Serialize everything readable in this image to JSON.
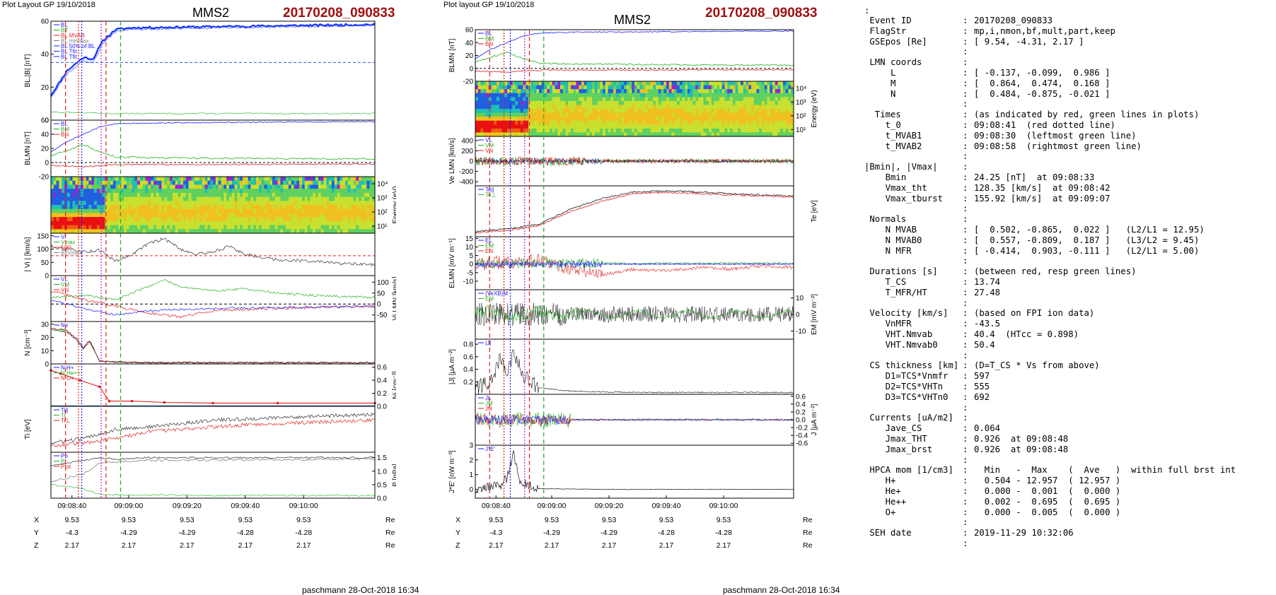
{
  "plot1": {
    "header": "Plot Layout GP 19/10/2018",
    "sc": "MMS2",
    "event": "20170208_090833",
    "footer": "paschmann 28-Oct-2018 16:34",
    "x_ticks": [
      "09:08:40",
      "09:09:00",
      "09:09:20",
      "09:09:40",
      "09:10:00"
    ],
    "pos_rows": [
      {
        "label": "X",
        "values": [
          "9.53",
          "9.53",
          "9.53",
          "9.53",
          "9.53"
        ],
        "unit": "Re"
      },
      {
        "label": "Y",
        "values": [
          "-4.3",
          "-4.29",
          "-4.29",
          "-4.28",
          "-4.28"
        ],
        "unit": "Re"
      },
      {
        "label": "Z",
        "values": [
          "2.17",
          "2.17",
          "2.17",
          "2.17",
          "2.17"
        ],
        "unit": "Re"
      }
    ],
    "panels": [
      {
        "ylabel": "BL,|B| [nT]",
        "ylabel_side": "left",
        "ticks": [
          "0",
          "20",
          "40",
          "60"
        ],
        "ylim": [
          0,
          60
        ],
        "legend": [
          "BL",
          "BT",
          "BL MVAB",
          "BL minmax",
          "BL 50% of BL",
          "BL Tfit",
          "BL Tfit"
        ]
      },
      {
        "ylabel": "BLMN [nT]",
        "ylabel_side": "left",
        "ticks": [
          "-20",
          "0",
          "20",
          "40",
          "60"
        ],
        "ylim": [
          -20,
          60
        ],
        "legend": [
          "BL",
          "BM",
          "BN"
        ]
      },
      {
        "ylabel": "Energy (eV)",
        "ylabel_side": "right",
        "ticks": [
          "10¹",
          "10²",
          "10³",
          "10⁴"
        ],
        "type": "spectrogram"
      },
      {
        "ylabel": "| Vi | [km/s]",
        "ylabel_side": "left",
        "ticks": [
          "0",
          "50",
          "100",
          "150"
        ],
        "ylim": [
          0,
          160
        ],
        "legend": [
          "Vi",
          "Vmax",
          "50%",
          "Bt/Vmax"
        ]
      },
      {
        "ylabel": "Vi LMN [km/s]",
        "ylabel_side": "right",
        "ticks": [
          "-50",
          "0",
          "50",
          "100"
        ],
        "ylim": [
          -80,
          130
        ],
        "legend": [
          "VL",
          "VM",
          "VN"
        ]
      },
      {
        "ylabel": "N [cm⁻³]",
        "ylabel_side": "left",
        "ticks": [
          "0",
          "10",
          "20",
          "30"
        ],
        "ylim": [
          0,
          32
        ],
        "legend": [
          "Ne",
          "Ni"
        ]
      },
      {
        "ylabel": "Ni [cm⁻³]",
        "ylabel_side": "right",
        "ticks": [
          "0.0",
          "0.2",
          "0.4",
          "0.6"
        ],
        "ylim": [
          0,
          0.65
        ],
        "legend": [
          "N H+",
          "N He++",
          "N O+"
        ]
      },
      {
        "ylabel": "Ti [eV]",
        "ylabel_side": "left",
        "ticks": [
          "10³"
        ],
        "ylim": [
          0,
          1
        ],
        "legend": [
          "Ti||",
          "Ti",
          "Ti⊥"
        ]
      },
      {
        "ylabel": "P [nPa]",
        "ylabel_side": "right",
        "ticks": [
          "0.0",
          "0.5",
          "1.0",
          "1.5"
        ],
        "ylim": [
          0,
          1.7
        ],
        "legend": [
          "Pb",
          "Pi",
          "Ptot"
        ]
      }
    ]
  },
  "plot2": {
    "header": "Plot layout GP 19/10/2018",
    "sc": "MMS2",
    "event": "20170208_090833",
    "footer": "paschmann 28-Oct-2018 16:34",
    "x_ticks": [
      "09:08:40",
      "09:09:00",
      "09:09:20",
      "09:09:40",
      "09:10:00"
    ],
    "pos_rows": [
      {
        "label": "X",
        "values": [
          "9.53",
          "9.53",
          "9.53",
          "9.53",
          "9.53"
        ],
        "unit": "Re"
      },
      {
        "label": "Y",
        "values": [
          "-4.3",
          "-4.29",
          "-4.29",
          "-4.28",
          "-4.28"
        ],
        "unit": "Re"
      },
      {
        "label": "Z",
        "values": [
          "2.17",
          "2.17",
          "2.17",
          "2.17",
          "2.17"
        ],
        "unit": "Re"
      }
    ],
    "panels": [
      {
        "ylabel": "BLMN [nT]",
        "ylabel_side": "left",
        "ticks": [
          "-20",
          "0",
          "20",
          "40",
          "60"
        ],
        "ylim": [
          -20,
          60
        ],
        "legend": [
          "BL",
          "BM",
          "BN"
        ]
      },
      {
        "ylabel": "Energy (eV)",
        "ylabel_side": "right",
        "ticks": [
          "10¹",
          "10²",
          "10³",
          "10⁴"
        ],
        "type": "spectrogram"
      },
      {
        "ylabel": "Ve LMN [km/s]",
        "ylabel_side": "left",
        "ticks": [
          "-400",
          "-200",
          "0",
          "200",
          "400"
        ],
        "ylim": [
          -480,
          480
        ],
        "legend": [
          "VL",
          "VM",
          "VN"
        ]
      },
      {
        "ylabel": "Te [eV]",
        "ylabel_side": "right",
        "ticks": [
          "10²"
        ],
        "ylim": [
          0,
          1
        ],
        "legend": [
          "Te||",
          "Te⊥"
        ]
      },
      {
        "ylabel": "ELMN [mV m⁻¹]",
        "ylabel_side": "left",
        "ticks": [
          "-10",
          "-5",
          "0",
          "5",
          "10",
          "15"
        ],
        "ylim": [
          -15,
          16
        ],
        "legend": [
          "EL",
          "EM",
          "EN"
        ]
      },
      {
        "ylabel": "EM [mV m⁻²]",
        "ylabel_side": "right",
        "ticks": [
          "-10",
          "0",
          "10"
        ],
        "ylim": [
          -15,
          15
        ],
        "legend": [
          "(VeXB)M",
          "EM"
        ]
      },
      {
        "ylabel": "|J| [μA m⁻²]",
        "ylabel_side": "left",
        "ticks": [
          "0.2",
          "0.4",
          "0.6",
          "0.8"
        ],
        "ylim": [
          0,
          0.88
        ],
        "legend": [
          "|J|"
        ]
      },
      {
        "ylabel": "J [μA m⁻²]",
        "ylabel_side": "right",
        "ticks": [
          "-0.6",
          "-0.4",
          "-0.2",
          "0.0",
          "0.2",
          "0.4",
          "0.6"
        ],
        "ylim": [
          -0.65,
          0.65
        ],
        "legend": [
          "JL",
          "JM",
          "JN"
        ]
      },
      {
        "ylabel": "J*E' [nW m⁻³]",
        "ylabel_side": "left",
        "ticks": [
          "0",
          "1",
          "2",
          "3"
        ],
        "ylim": [
          -0.6,
          3
        ],
        "legend": [
          "J*E'"
        ]
      }
    ]
  },
  "info": {
    "lead": ":",
    "rows": [
      {
        "k": " Event ID",
        "v": "20170208_090833"
      },
      {
        "k": " FlagStr",
        "v": "mp,i,nmon,bf,mult,part,keep"
      },
      {
        "k": " GSEpos [Re]",
        "v": "[ 9.54, -4.31, 2.17 ]"
      },
      {
        "k": "",
        "v": ""
      },
      {
        "k": " LMN coords",
        "v": ""
      },
      {
        "k": "     L",
        "v": "[ -0.137, -0.099,  0.986 ]"
      },
      {
        "k": "     M",
        "v": "[  0.864,  0.474,  0.168 ]"
      },
      {
        "k": "     N",
        "v": "[  0.484, -0.875, -0.021 ]"
      },
      {
        "k": "",
        "v": ""
      },
      {
        "k": "  Times",
        "v": "(as indicated by red, green lines in plots)"
      },
      {
        "k": "    t_0",
        "v": "09:08:41  (red dotted line)"
      },
      {
        "k": "    t_MVAB1",
        "v": "09:08:30  (leftmost green line)"
      },
      {
        "k": "    t_MVAB2",
        "v": "09:08:58  (rightmost green line)"
      },
      {
        "k": "",
        "v": ""
      },
      {
        "k": "|Bmin|, |Vmax|",
        "v": ""
      },
      {
        "k": "    Bmin",
        "v": "24.25 [nT]  at 09:08:33"
      },
      {
        "k": "    Vmax_tht",
        "v": "128.35 [km/s]  at 09:08:42"
      },
      {
        "k": "    Vmax_tburst",
        "v": "155.92 [km/s]  at 09:09:07"
      },
      {
        "k": "",
        "v": ""
      },
      {
        "k": " Normals",
        "v": ""
      },
      {
        "k": "    N MVAB",
        "v": "[  0.502, -0.865,  0.022 ]   (L2/L1 = 12.95)"
      },
      {
        "k": "    N MVAB0",
        "v": "[  0.557, -0.809,  0.187 ]   (L3/L2 = 9.45)"
      },
      {
        "k": "    N MFR",
        "v": "[ -0.414,  0.903, -0.111 ]   (L2/L1 = 5.00)"
      },
      {
        "k": "",
        "v": ""
      },
      {
        "k": " Durations [s]",
        "v": "(between red, resp green lines)"
      },
      {
        "k": "    T_CS",
        "v": "13.74"
      },
      {
        "k": "    T_MFR/HT",
        "v": "27.48"
      },
      {
        "k": "",
        "v": ""
      },
      {
        "k": " Velocity [km/s]",
        "v": "(based on FPI ion data)"
      },
      {
        "k": "    VnMFR",
        "v": "-43.5"
      },
      {
        "k": "    VHT.Nmvab",
        "v": "40.4  (HTcc = 0.898)"
      },
      {
        "k": "    VHT.Nmvab0",
        "v": "50.4"
      },
      {
        "k": "",
        "v": ""
      },
      {
        "k": " CS thickness [km]",
        "v": "(D=T_CS * Vs from above)"
      },
      {
        "k": "    D1=TCS*Vnmfr",
        "v": "597"
      },
      {
        "k": "    D2=TCS*VHTn",
        "v": "555"
      },
      {
        "k": "    D3=TCS*VHTn0",
        "v": "692"
      },
      {
        "k": "",
        "v": ""
      },
      {
        "k": " Currents [uA/m2]",
        "v": ""
      },
      {
        "k": "    Jave_CS",
        "v": "0.064"
      },
      {
        "k": "    Jmax_THT",
        "v": "0.926  at 09:08:48"
      },
      {
        "k": "    Jmax_brst",
        "v": "0.926  at 09:08:48"
      },
      {
        "k": "",
        "v": ""
      },
      {
        "k": " HPCA mom [1/cm3]",
        "v": "  Min   -  Max    (  Ave   )  within full brst int"
      },
      {
        "k": "    H+",
        "v": "  0.504 - 12.957  ( 12.957 )"
      },
      {
        "k": "    He+",
        "v": "  0.000 -  0.001  (  0.000 )"
      },
      {
        "k": "    He++",
        "v": "  0.002 -  0.695  (  0.695 )"
      },
      {
        "k": "    O+",
        "v": "  0.000 -  0.005  (  0.000 )"
      },
      {
        "k": "",
        "v": ""
      },
      {
        "k": " SEH date",
        "v": "2019-11-29 10:32:06"
      },
      {
        "k": "",
        "v": ""
      }
    ]
  },
  "chart_data": [
    {
      "type": "line",
      "title": "MMS2 20170208_090833",
      "x_ticks": [
        "09:08:40",
        "09:09:00",
        "09:09:20",
        "09:09:40",
        "09:10:00"
      ],
      "series": [
        {
          "name": "|B|",
          "x": [
            0.0,
            0.03,
            0.06,
            0.1,
            0.13,
            0.16,
            0.2,
            0.25,
            0.3,
            0.4,
            0.5,
            0.6,
            0.7,
            0.8,
            0.9,
            1.0
          ],
          "values": [
            15,
            18,
            30,
            37,
            38,
            48,
            55,
            56,
            56,
            57,
            57,
            57,
            57.5,
            58,
            58,
            58
          ]
        },
        {
          "name": "|Vi|",
          "x": [
            0.0,
            0.05,
            0.1,
            0.15,
            0.2,
            0.25,
            0.3,
            0.35,
            0.4,
            0.45,
            0.5,
            0.55,
            0.6,
            0.7,
            0.8,
            0.9,
            1.0
          ],
          "values": [
            110,
            100,
            90,
            95,
            55,
            80,
            120,
            140,
            100,
            80,
            90,
            110,
            80,
            60,
            55,
            45,
            40
          ]
        },
        {
          "name": "N",
          "x": [
            0.0,
            0.05,
            0.08,
            0.1,
            0.12,
            0.15,
            0.2,
            0.3,
            0.5,
            0.7,
            1.0
          ],
          "values": [
            27,
            25,
            19,
            12,
            18,
            2,
            1.5,
            1,
            1,
            1,
            1
          ]
        },
        {
          "name": "N H+",
          "x": [
            0.0,
            0.15,
            0.18,
            0.25,
            0.35,
            0.5,
            0.7,
            1.0
          ],
          "values": [
            0.55,
            0.45,
            0.08,
            0.08,
            0.06,
            0.05,
            0.05,
            0.05
          ]
        }
      ]
    },
    {
      "type": "line",
      "title": "MMS2 20170208_090833",
      "x_ticks": [
        "09:08:40",
        "09:09:00",
        "09:09:20",
        "09:09:40",
        "09:10:00"
      ],
      "series": [
        {
          "name": "BL",
          "x": [
            0.0,
            0.05,
            0.1,
            0.15,
            0.2,
            0.3,
            1.0
          ],
          "values": [
            15,
            30,
            40,
            50,
            55,
            56,
            58
          ]
        },
        {
          "name": "Te",
          "x": [
            0.0,
            0.1,
            0.2,
            0.25,
            0.3,
            0.4,
            0.5,
            0.6,
            0.7,
            0.8,
            0.9,
            1.0
          ],
          "values": [
            0.1,
            0.15,
            0.25,
            0.4,
            0.55,
            0.75,
            0.88,
            0.9,
            0.88,
            0.85,
            0.82,
            0.8
          ]
        },
        {
          "name": "|J|",
          "x": [
            0.0,
            0.05,
            0.08,
            0.1,
            0.12,
            0.15,
            0.2,
            0.3,
            0.5,
            1.0
          ],
          "values": [
            0.1,
            0.2,
            0.6,
            0.3,
            0.7,
            0.3,
            0.1,
            0.05,
            0.03,
            0.03
          ]
        },
        {
          "name": "J*E'",
          "x": [
            0.0,
            0.08,
            0.1,
            0.12,
            0.14,
            0.2,
            0.4,
            1.0
          ],
          "values": [
            0,
            0.3,
            0.8,
            2.5,
            0.5,
            0.05,
            0,
            0
          ]
        }
      ]
    }
  ]
}
